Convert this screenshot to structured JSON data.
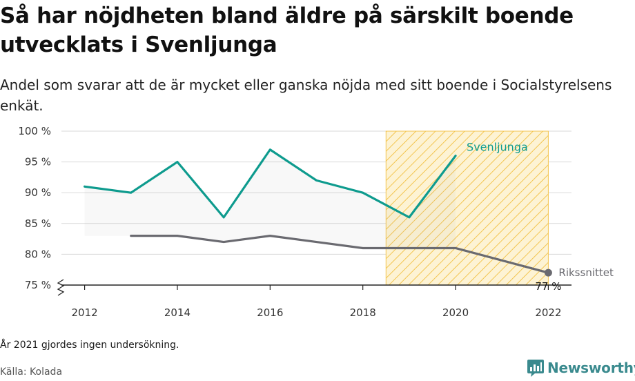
{
  "title": "Så har nöjdheten bland äldre på särskilt boende utvecklats i Svenljunga",
  "subtitle": "Andel som svarar att de är mycket eller ganska nöjda med sitt boende i Socialstyrelsens enkät.",
  "note": "År 2021 gjordes ingen undersökning.",
  "source": "Källa: Kolada",
  "logo_text": "Newsworthy",
  "colors": {
    "svenljunga": "#0e9b8e",
    "riket": "#6a6a70",
    "highlight": "#f3c550",
    "grid": "#d9d9d9"
  },
  "chart_data": {
    "type": "line",
    "x": [
      2012,
      2013,
      2014,
      2015,
      2016,
      2017,
      2018,
      2019,
      2020,
      2022
    ],
    "series": [
      {
        "name": "Svenljunga",
        "values": [
          91,
          90,
          95,
          86,
          97,
          92,
          90,
          86,
          96,
          null
        ]
      },
      {
        "name": "Rikssnittet",
        "values": [
          null,
          83,
          83,
          82,
          83,
          82,
          81,
          81,
          81,
          77
        ]
      }
    ],
    "last_value_label": "77 %",
    "xticks": [
      2012,
      2014,
      2016,
      2018,
      2020,
      2022
    ],
    "yticks": [
      75,
      80,
      85,
      90,
      95,
      100
    ],
    "ytick_labels": [
      "75 %",
      "80 %",
      "85 %",
      "90 %",
      "95 %",
      "100 %"
    ],
    "ylim": [
      75,
      100
    ],
    "xlim": [
      2011.5,
      2022.5
    ],
    "highlight_range": [
      2018.5,
      2022
    ],
    "grid": true
  }
}
